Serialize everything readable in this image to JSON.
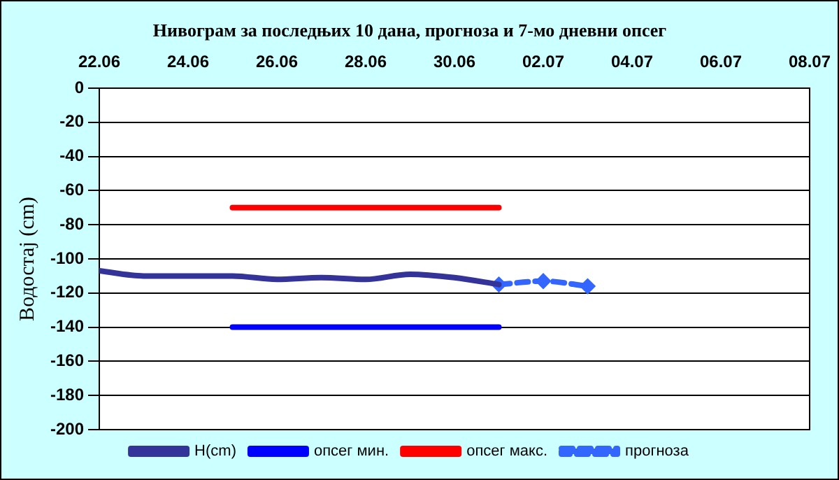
{
  "chart_data": {
    "type": "line",
    "title": "Нивограм за последњих 10 дана, прогноза и 7-мо дневни опсег",
    "ylabel": "Водостај (cm)",
    "xlim": [
      "--06-22",
      "--07-08"
    ],
    "xticks": [
      {
        "value": "--06-22",
        "label": "22.06"
      },
      {
        "value": "--06-24",
        "label": "24.06"
      },
      {
        "value": "--06-26",
        "label": "26.06"
      },
      {
        "value": "--06-28",
        "label": "28.06"
      },
      {
        "value": "--06-30",
        "label": "30.06"
      },
      {
        "value": "--07-02",
        "label": "02.07"
      },
      {
        "value": "--07-04",
        "label": "04.07"
      },
      {
        "value": "--07-06",
        "label": "06.07"
      },
      {
        "value": "--07-08",
        "label": "08.07"
      }
    ],
    "ylim": [
      -200,
      0
    ],
    "yticks": [
      -200,
      -180,
      -160,
      -140,
      -120,
      -100,
      -80,
      -60,
      -40,
      -20,
      0
    ],
    "grid": "y",
    "legend": "bottom",
    "series": [
      {
        "name": "H(cm)",
        "color": "#333399",
        "x": [
          "--06-22",
          "--06-23",
          "--06-24",
          "--06-25",
          "--06-26",
          "--06-27",
          "--06-28",
          "--06-29",
          "--06-30",
          "--07-01"
        ],
        "values": [
          -107,
          -110,
          -110,
          -110,
          -112,
          -111,
          -112,
          -109,
          -111,
          -115
        ],
        "marker": "none",
        "line_style": "solid"
      },
      {
        "name": "опсег мин.",
        "color": "#0000ff",
        "x": [
          "--06-25",
          "--07-01"
        ],
        "values": [
          -140,
          -140
        ],
        "marker": "none",
        "line_style": "solid"
      },
      {
        "name": "опсег макс.",
        "color": "#ff0000",
        "x": [
          "--06-25",
          "--07-01"
        ],
        "values": [
          -70,
          -70
        ],
        "marker": "none",
        "line_style": "solid"
      },
      {
        "name": "прогноза",
        "color": "#3366ff",
        "x": [
          "--07-01",
          "--07-02",
          "--07-03"
        ],
        "values": [
          -115,
          -113,
          -116
        ],
        "marker": "diamond",
        "line_style": "dashed"
      }
    ]
  }
}
